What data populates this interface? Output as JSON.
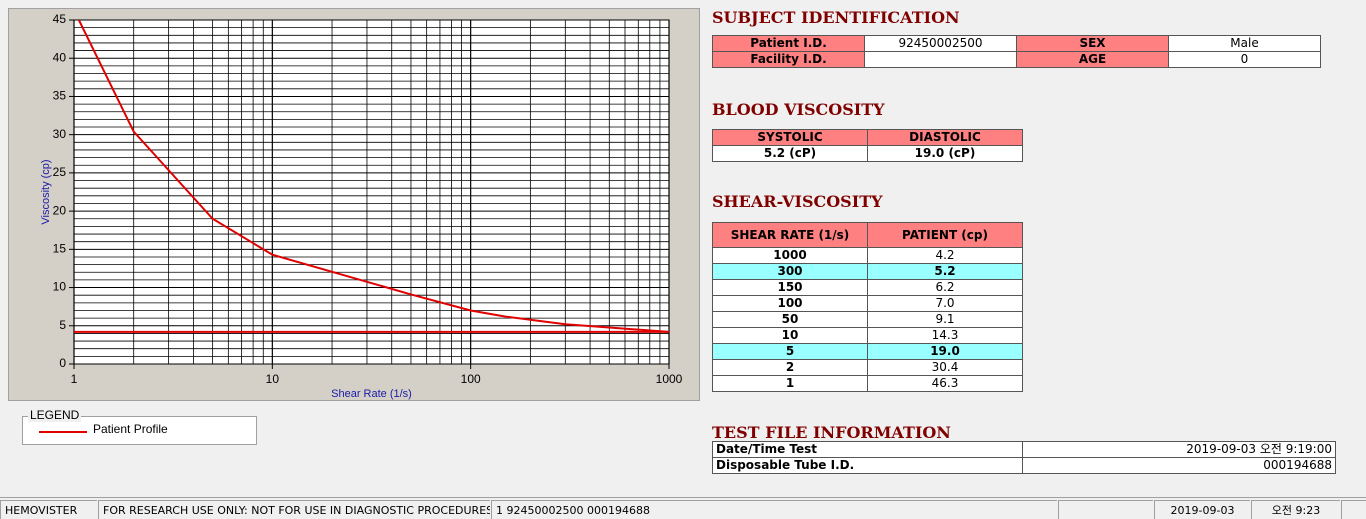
{
  "chart_data": {
    "type": "line",
    "xlabel": "Shear Rate (1/s)",
    "ylabel": "Viscosity (cp)",
    "xscale": "log",
    "xlim": [
      1,
      1000
    ],
    "xticks": [
      1,
      10,
      100,
      1000
    ],
    "xminor": [
      2,
      3,
      4,
      5,
      6,
      7,
      8,
      9,
      20,
      30,
      40,
      50,
      60,
      70,
      80,
      90,
      200,
      300,
      400,
      500,
      600,
      700,
      800,
      900
    ],
    "ylim": [
      0,
      45
    ],
    "yticks": [
      0,
      5,
      10,
      15,
      20,
      25,
      30,
      35,
      40,
      45
    ],
    "yminor": [
      1,
      2,
      3,
      4,
      6,
      7,
      8,
      9,
      11,
      12,
      13,
      14,
      16,
      17,
      18,
      19,
      21,
      22,
      23,
      24,
      26,
      27,
      28,
      29,
      31,
      32,
      33,
      34,
      36,
      37,
      38,
      39,
      41,
      42,
      43,
      44
    ],
    "grid": true,
    "legend_title": "LEGEND",
    "series": [
      {
        "name": "Patient Profile",
        "color": "#e00000",
        "x": [
          1,
          2,
          5,
          10,
          50,
          100,
          150,
          300,
          1000
        ],
        "values": [
          46.3,
          30.4,
          19.0,
          14.3,
          9.1,
          7.0,
          6.2,
          5.2,
          4.2
        ]
      },
      {
        "color": "#e00000",
        "x": [
          1,
          1000
        ],
        "values": [
          4.2,
          4.2
        ]
      }
    ]
  },
  "subject_identification": {
    "title": "SUBJECT IDENTIFICATION",
    "fields": [
      {
        "label": "Patient I.D.",
        "value": "92450002500"
      },
      {
        "label": "SEX",
        "value": "Male"
      },
      {
        "label": "Facility I.D."
      },
      {
        "label": "AGE",
        "value": "0"
      }
    ]
  },
  "blood_viscosity": {
    "title": "BLOOD VISCOSITY",
    "headers": [
      "SYSTOLIC",
      "DIASTOLIC"
    ],
    "values": [
      "5.2 (cP)",
      "19.0 (cP)"
    ]
  },
  "shear_viscosity": {
    "title": "SHEAR-VISCOSITY",
    "headers": [
      "SHEAR RATE (1/s)",
      "PATIENT (cp)"
    ],
    "rows": [
      [
        "1000",
        "4.2"
      ],
      [
        "300",
        "5.2"
      ],
      [
        "150",
        "6.2"
      ],
      [
        "100",
        "7.0"
      ],
      [
        "50",
        "9.1"
      ],
      [
        "10",
        "14.3"
      ],
      [
        "5",
        "19.0"
      ],
      [
        "2",
        "30.4"
      ],
      [
        "1",
        "46.3"
      ]
    ],
    "highlight_rows": [
      1,
      6
    ]
  },
  "test_file": {
    "title": "TEST FILE INFORMATION",
    "rows": [
      [
        "Date/Time Test",
        "2019-09-03   오전 9:19:00"
      ],
      [
        "Disposable Tube I.D.",
        "000194688"
      ]
    ]
  },
  "status_bar": [
    "HEMOVISTER",
    "FOR RESEARCH USE ONLY: NOT FOR USE IN DIAGNOSTIC PROCEDURES",
    "1  92450002500  000194688",
    "2019-09-03",
    "오전 9:23"
  ]
}
